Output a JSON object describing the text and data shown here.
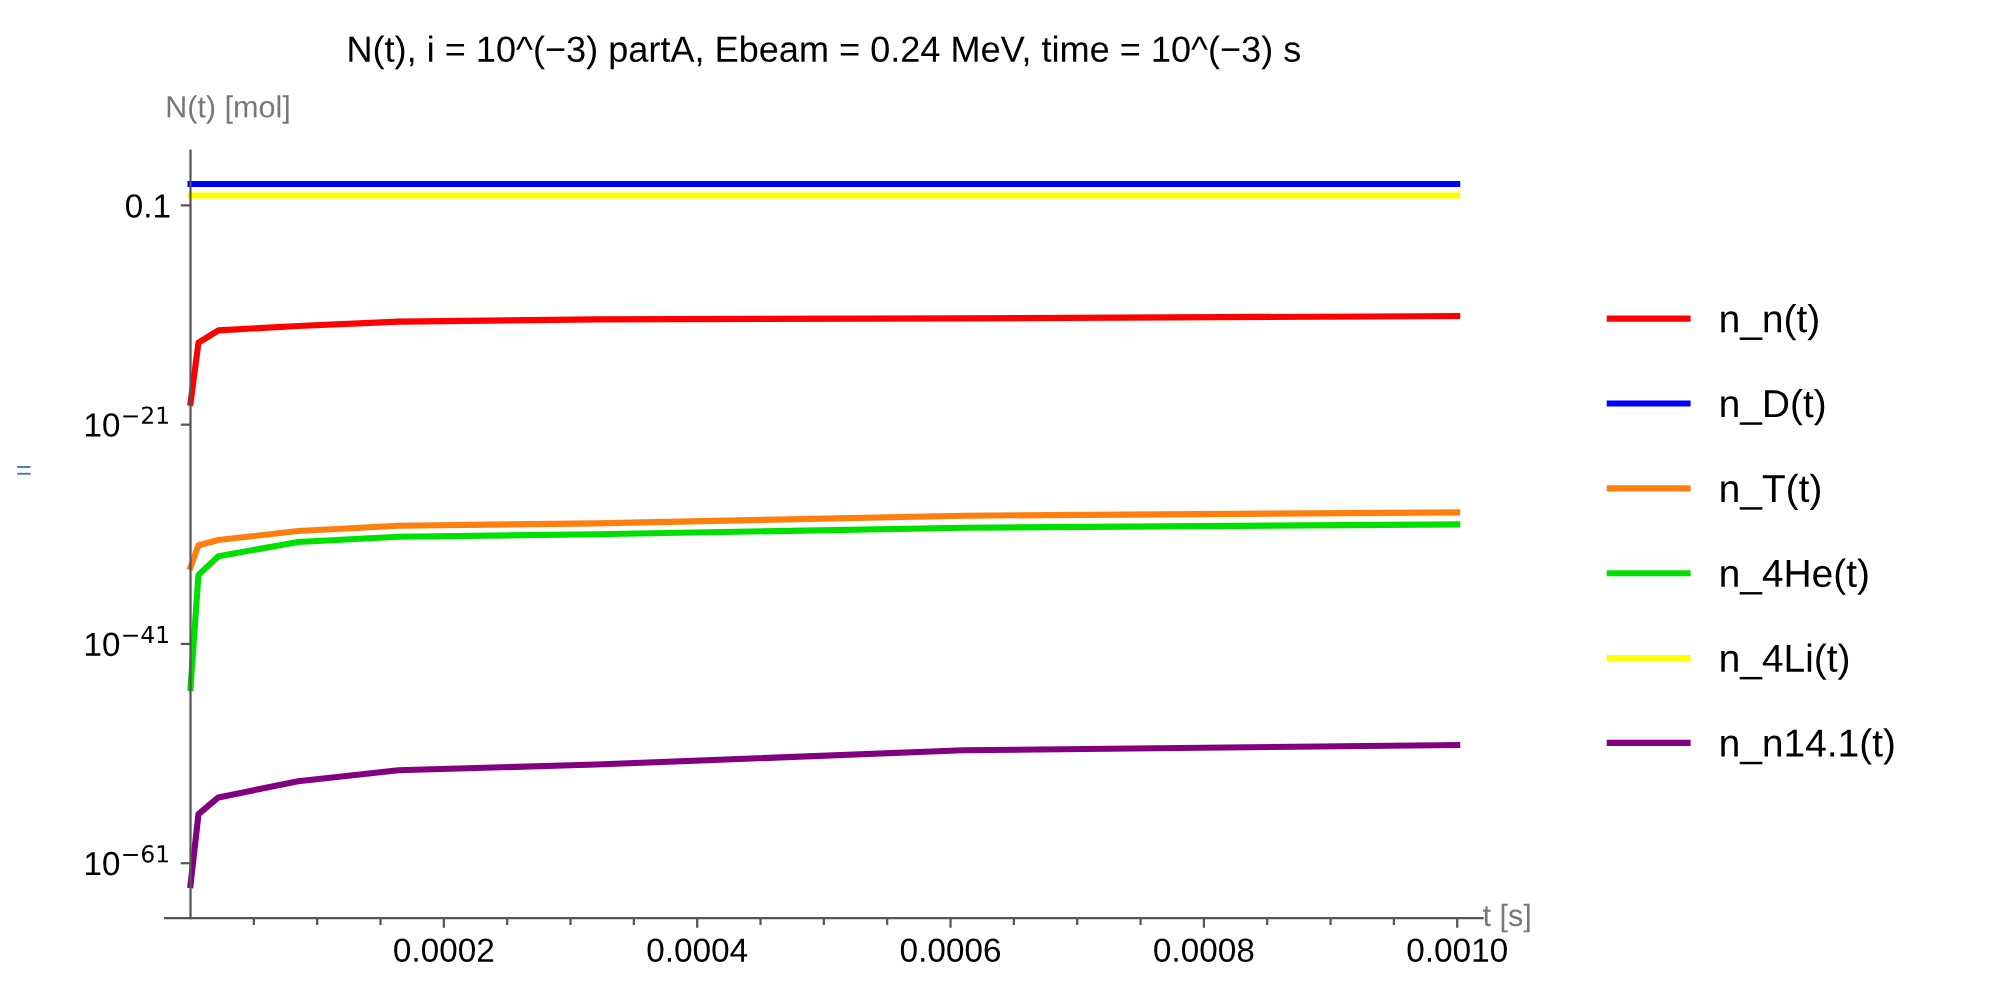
{
  "chart_data": {
    "type": "line",
    "title": "N(t), i = 10^(−3) partA, Ebeam = 0.24 MeV, time = 10^(−3) s",
    "xlabel": "t [s]",
    "ylabel": "N(t) [mol]",
    "annotations": [
      "="
    ],
    "log": "y",
    "xlim": [
      -2e-05,
      0.00102
    ],
    "ylim": [
      1e-66,
      10000.0
    ],
    "xticks": [
      {
        "value": 5e-05,
        "label": null
      },
      {
        "value": 0.0001,
        "label": null
      },
      {
        "value": 0.00015,
        "label": null
      },
      0.0002,
      {
        "value": 0.00025,
        "label": null
      },
      {
        "value": 0.0003,
        "label": null
      },
      {
        "value": 0.00035,
        "label": null
      },
      0.0004,
      {
        "value": 0.00045,
        "label": null
      },
      {
        "value": 0.0005,
        "label": null
      },
      {
        "value": 0.00055,
        "label": null
      },
      0.0006,
      {
        "value": 0.00065,
        "label": null
      },
      {
        "value": 0.0007,
        "label": null
      },
      {
        "value": 0.00075,
        "label": null
      },
      0.0008,
      {
        "value": 0.00085,
        "label": null
      },
      {
        "value": 0.0009,
        "label": null
      },
      {
        "value": 0.00095,
        "label": null
      },
      {
        "value": 0.001,
        "label": "0.0010"
      }
    ],
    "yticks": [
      {
        "value": 0.1,
        "label": "0.1"
      },
      {
        "value": 1e-21,
        "label": "10$^{−21}$"
      },
      {
        "value": 1e-41,
        "label": "10$^{−41}$"
      },
      {
        "value": 1e-61,
        "label": "10$^{−61}$"
      }
    ],
    "x": [
      0,
      6.3e-06,
      2.2e-05,
      8.5e-05,
      0.000164,
      0.00032,
      0.00061,
      0.001
    ],
    "legend": "right",
    "grid": false,
    "marker": "none",
    "line_style": "solid",
    "series": [
      {
        "name": "n_n(t)",
        "color": "#ff0000",
        "values": [
          1e-19,
          3e-14,
          4e-13,
          1e-12,
          2.5e-12,
          4e-12,
          5e-12,
          8e-12
        ]
      },
      {
        "name": "n_D(t)",
        "color": "#0000ff",
        "values": [
          9,
          9,
          9,
          9,
          9,
          9,
          9,
          9
        ]
      },
      {
        "name": "n_T(t)",
        "color": "#ff7f0e",
        "values": [
          1e-34,
          1e-32,
          3e-32,
          2e-31,
          6e-31,
          1e-30,
          5e-30,
          1e-29
        ]
      },
      {
        "name": "n_4He(t)",
        "color": "#00e000",
        "values": [
          1e-45,
          2e-35,
          1e-33,
          2e-32,
          6e-32,
          1e-31,
          4e-31,
          8e-31
        ]
      },
      {
        "name": "n_4Li(t)",
        "color": "#ffff00",
        "values": [
          0.8,
          0.8,
          0.8,
          0.8,
          0.8,
          0.8,
          0.8,
          0.8
        ]
      },
      {
        "name": "n_n14.1(t)",
        "color": "#800080",
        "values": [
          1e-63,
          3e-57,
          1e-55,
          3e-54,
          3e-53,
          1e-52,
          2e-51,
          6e-51
        ]
      }
    ]
  }
}
